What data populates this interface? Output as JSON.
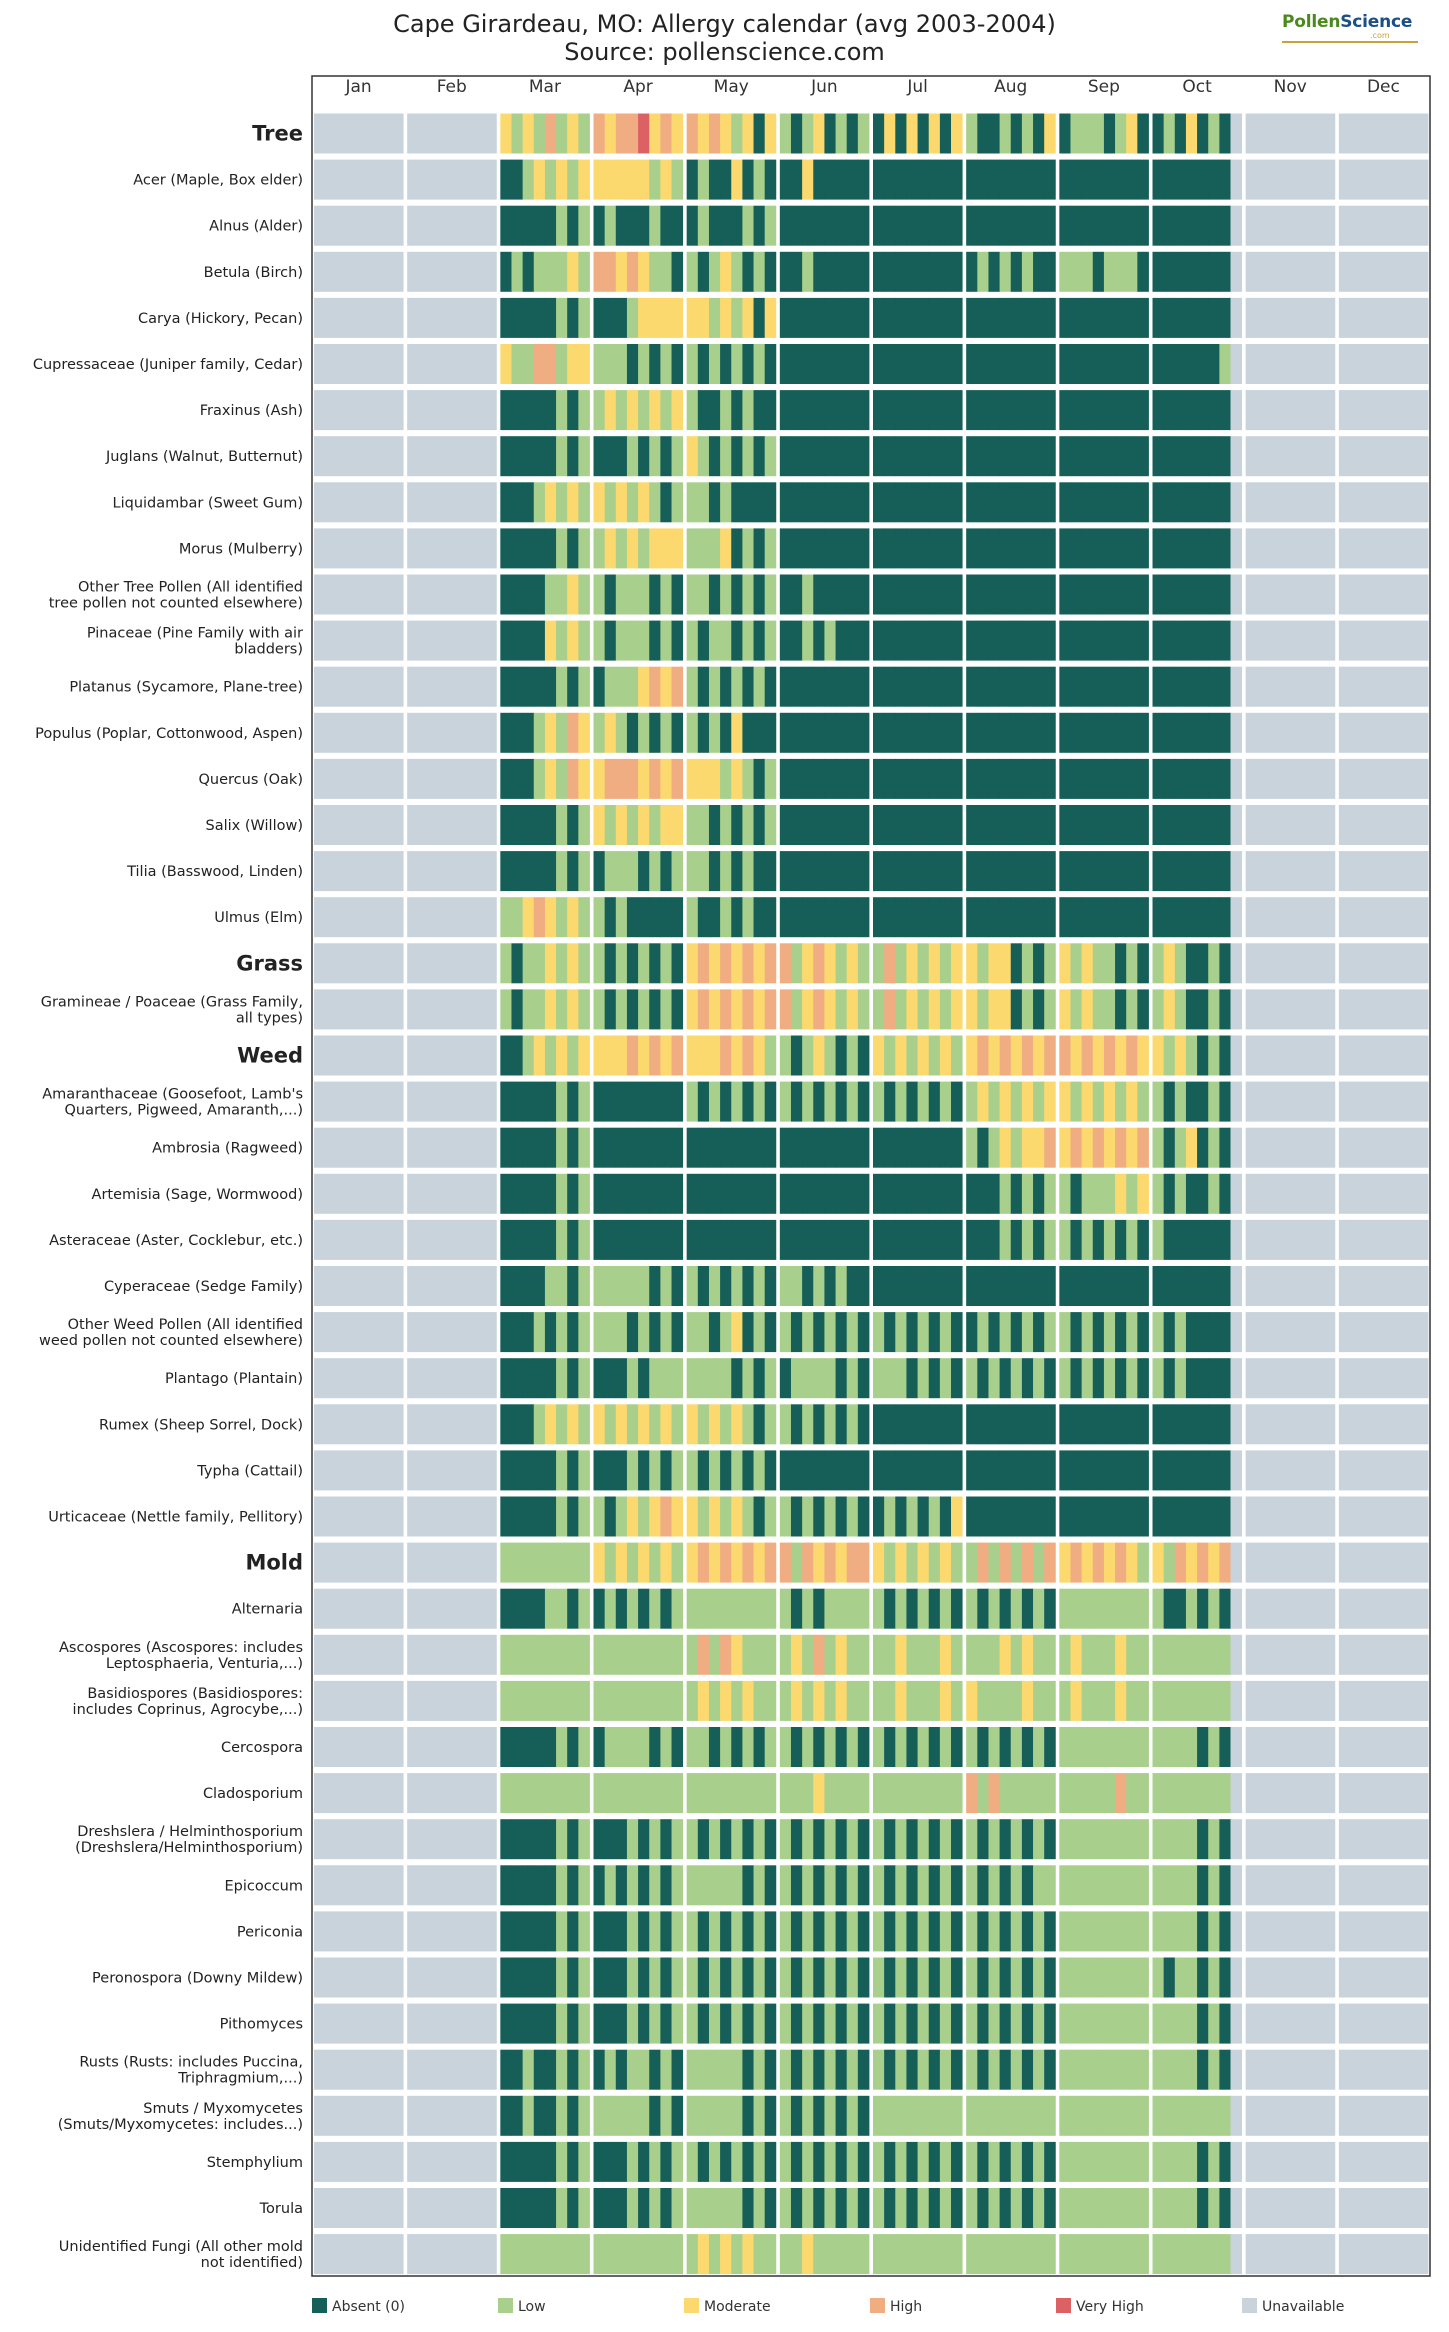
{
  "title": "Cape Girardeau, MO: Allergy calendar (avg 2003-2004)",
  "subtitle": "Source: pollenscience.com",
  "logo": {
    "brand_part1": "Pollen",
    "brand_part2": "Science",
    "domain": ".com"
  },
  "chart_data": {
    "type": "heatmap",
    "title": "Cape Girardeau, MO: Allergy calendar (avg 2003-2004)",
    "subtitle": "Source: pollenscience.com",
    "x_axis": "months",
    "months": [
      "Jan",
      "Feb",
      "Mar",
      "Apr",
      "May",
      "Jun",
      "Jul",
      "Aug",
      "Sep",
      "Oct",
      "Nov",
      "Dec"
    ],
    "level_names": [
      "Absent (0)",
      "Low",
      "Moderate",
      "High",
      "Very High",
      "Unavailable"
    ],
    "colors": {
      "absent": "#155f58",
      "low": "#a8cf8c",
      "moderate": "#fcd96f",
      "high": "#f0ad82",
      "very_high": "#dc6164",
      "unavailable": "#c8d3dc"
    },
    "legend": [
      {
        "label": "Absent (0)",
        "color": "#155f58"
      },
      {
        "label": "Low",
        "color": "#a8cf8c"
      },
      {
        "label": "Moderate",
        "color": "#fcd96f"
      },
      {
        "label": "High",
        "color": "#f0ad82"
      },
      {
        "label": "Very High",
        "color": "#dc6164"
      },
      {
        "label": "Unavailable",
        "color": "#c8d3dc"
      }
    ],
    "legend_position": "bottom",
    "level_code": "Each month lists its weekly cells as a string: 0=Absent, 1=Low, 2=Moderate, 3=High, 4=Very High, 5=Unavailable",
    "rows": [
      {
        "name": "Tree",
        "category": true,
        "months": [
          "5",
          "5",
          "21213121",
          "32334232",
          "32321202",
          "10120101",
          "02020202",
          "10010102",
          "01110120",
          "01020105",
          "5",
          "5"
        ]
      },
      {
        "name": "Acer (Maple, Box elder)",
        "category": false,
        "months": [
          "5",
          "5",
          "00121212",
          "22222121",
          "01002010",
          "00200000",
          "00000000",
          "00000000",
          "00000000",
          "00000005",
          "5",
          "5"
        ]
      },
      {
        "name": "Alnus (Alder)",
        "category": false,
        "months": [
          "5",
          "5",
          "00000101",
          "01000100",
          "01000101",
          "00000000",
          "00000000",
          "00000000",
          "00000000",
          "00000005",
          "5",
          "5"
        ]
      },
      {
        "name": "Betula (Birch)",
        "category": false,
        "months": [
          "5",
          "5",
          "01011121",
          "33232110",
          "10121010",
          "00100000",
          "00000000",
          "01010100",
          "11101110",
          "00000005",
          "5",
          "5"
        ]
      },
      {
        "name": "Carya (Hickory, Pecan)",
        "category": false,
        "months": [
          "5",
          "5",
          "00000101",
          "00012222",
          "22121202",
          "00000000",
          "00000000",
          "00000000",
          "00000000",
          "00000005",
          "5",
          "5"
        ]
      },
      {
        "name": "Cupressaceae (Juniper family, Cedar)",
        "category": false,
        "months": [
          "5",
          "5",
          "21133122",
          "11101010",
          "10101010",
          "00000000",
          "00000000",
          "00000000",
          "00000000",
          "00000015",
          "5",
          "5"
        ]
      },
      {
        "name": "Fraxinus (Ash)",
        "category": false,
        "months": [
          "5",
          "5",
          "00000101",
          "12121212",
          "10010100",
          "00000000",
          "00000000",
          "00000000",
          "00000000",
          "00000005",
          "5",
          "5"
        ]
      },
      {
        "name": "Juglans (Walnut, Butternut)",
        "category": false,
        "months": [
          "5",
          "5",
          "00000101",
          "00010101",
          "21010101",
          "00000000",
          "00000000",
          "00000000",
          "00000000",
          "00000005",
          "5",
          "5"
        ]
      },
      {
        "name": "Liquidambar (Sweet Gum)",
        "category": false,
        "months": [
          "5",
          "5",
          "00012121",
          "21212101",
          "11010000",
          "00000000",
          "00000000",
          "00000000",
          "00000000",
          "00000005",
          "5",
          "5"
        ]
      },
      {
        "name": "Morus (Mulberry)",
        "category": false,
        "months": [
          "5",
          "5",
          "00000101",
          "12121222",
          "11120101",
          "00000000",
          "00000000",
          "00000000",
          "00000000",
          "00000005",
          "5",
          "5"
        ]
      },
      {
        "name": "Other Tree Pollen (All identified\ntree pollen not counted elsewhere)",
        "category": false,
        "months": [
          "5",
          "5",
          "00001121",
          "10111010",
          "11010101",
          "00100000",
          "00000000",
          "00000000",
          "00000000",
          "00000005",
          "5",
          "5"
        ]
      },
      {
        "name": "Pinaceae (Pine Family with air\nbladders)",
        "category": false,
        "months": [
          "5",
          "5",
          "00002121",
          "10111010",
          "10110101",
          "00101000",
          "00000000",
          "00000000",
          "00000000",
          "00000005",
          "5",
          "5"
        ]
      },
      {
        "name": "Platanus (Sycamore, Plane-tree)",
        "category": false,
        "months": [
          "5",
          "5",
          "00000101",
          "01112323",
          "10101010",
          "00000000",
          "00000000",
          "00000000",
          "00000000",
          "00000005",
          "5",
          "5"
        ]
      },
      {
        "name": "Populus (Poplar, Cottonwood, Aspen)",
        "category": false,
        "months": [
          "5",
          "5",
          "00012132",
          "12101010",
          "10102000",
          "00000000",
          "00000000",
          "00000000",
          "00000000",
          "00000005",
          "5",
          "5"
        ]
      },
      {
        "name": "Quercus (Oak)",
        "category": false,
        "months": [
          "5",
          "5",
          "00012132",
          "23332323",
          "22212101",
          "00000000",
          "00000000",
          "00000000",
          "00000000",
          "00000005",
          "5",
          "5"
        ]
      },
      {
        "name": "Salix (Willow)",
        "category": false,
        "months": [
          "5",
          "5",
          "00000101",
          "21212122",
          "11010101",
          "00000000",
          "00000000",
          "00000000",
          "00000000",
          "00000005",
          "5",
          "5"
        ]
      },
      {
        "name": "Tilia (Basswood, Linden)",
        "category": false,
        "months": [
          "5",
          "5",
          "00000101",
          "01110101",
          "11010100",
          "00000000",
          "00000000",
          "00000000",
          "00000000",
          "00000005",
          "5",
          "5"
        ]
      },
      {
        "name": "Ulmus (Elm)",
        "category": false,
        "months": [
          "5",
          "5",
          "11232121",
          "10100000",
          "10010100",
          "00000000",
          "00000000",
          "00000000",
          "00000000",
          "00000005",
          "5",
          "5"
        ]
      },
      {
        "name": "Grass",
        "category": true,
        "months": [
          "5",
          "5",
          "10112121",
          "10101010",
          "23232323",
          "31232121",
          "13121212",
          "21220101",
          "21211010",
          "12100105",
          "5",
          "5"
        ]
      },
      {
        "name": "Gramineae / Poaceae (Grass Family,\nall types)",
        "category": false,
        "months": [
          "5",
          "5",
          "10112121",
          "10101010",
          "23232323",
          "31232121",
          "13121212",
          "21220101",
          "21211010",
          "12100105",
          "5",
          "5"
        ]
      },
      {
        "name": "Weed",
        "category": true,
        "months": [
          "5",
          "5",
          "00121212",
          "22232323",
          "22232321",
          "10121010",
          "21212121",
          "23232323",
          "32323232",
          "21210105",
          "5",
          "5"
        ]
      },
      {
        "name": "Amaranthaceae (Goosefoot, Lamb's\nQuarters, Pigweed, Amaranth,...)",
        "category": false,
        "months": [
          "5",
          "5",
          "00000101",
          "00000000",
          "10101010",
          "10101010",
          "10101010",
          "12121212",
          "21212121",
          "10100105",
          "5",
          "5"
        ]
      },
      {
        "name": "Ambrosia (Ragweed)",
        "category": false,
        "months": [
          "5",
          "5",
          "00000101",
          "00000000",
          "00000000",
          "00000000",
          "00000000",
          "10121223",
          "23232323",
          "10120105",
          "5",
          "5"
        ]
      },
      {
        "name": "Artemisia (Sage, Wormwood)",
        "category": false,
        "months": [
          "5",
          "5",
          "00000101",
          "00000000",
          "00000000",
          "00000000",
          "00000000",
          "00010101",
          "10111212",
          "10100105",
          "5",
          "5"
        ]
      },
      {
        "name": "Asteraceae (Aster, Cocklebur, etc.)",
        "category": false,
        "months": [
          "5",
          "5",
          "00000101",
          "00000000",
          "00000000",
          "00000000",
          "00000000",
          "00010101",
          "10101010",
          "10000005",
          "5",
          "5"
        ]
      },
      {
        "name": "Cyperaceae (Sedge Family)",
        "category": false,
        "months": [
          "5",
          "5",
          "00001101",
          "11111010",
          "10101010",
          "11010100",
          "00000000",
          "00000000",
          "00000000",
          "00000005",
          "5",
          "5"
        ]
      },
      {
        "name": "Other Weed Pollen (All identified\nweed pollen not counted elsewhere)",
        "category": false,
        "months": [
          "5",
          "5",
          "00010101",
          "11101010",
          "11012010",
          "10101010",
          "10101010",
          "01010101",
          "10101010",
          "10100005",
          "5",
          "5"
        ]
      },
      {
        "name": "Plantago (Plantain)",
        "category": false,
        "months": [
          "5",
          "5",
          "00000101",
          "00010111",
          "11110101",
          "01111010",
          "11101010",
          "10101010",
          "10101010",
          "10100005",
          "5",
          "5"
        ]
      },
      {
        "name": "Rumex (Sheep Sorrel, Dock)",
        "category": false,
        "months": [
          "5",
          "5",
          "00012121",
          "21212121",
          "21212101",
          "10101010",
          "00000000",
          "00000000",
          "00000000",
          "00000005",
          "5",
          "5"
        ]
      },
      {
        "name": "Typha (Cattail)",
        "category": false,
        "months": [
          "5",
          "5",
          "00000101",
          "00010101",
          "10101010",
          "00000000",
          "00000000",
          "00000000",
          "00000000",
          "00000005",
          "5",
          "5"
        ]
      },
      {
        "name": "Urticaceae (Nettle family, Pellitory)",
        "category": false,
        "months": [
          "5",
          "5",
          "00000101",
          "10121232",
          "21212101",
          "10101010",
          "01010102",
          "00000000",
          "00000000",
          "00000005",
          "5",
          "5"
        ]
      },
      {
        "name": "Mold",
        "category": true,
        "months": [
          "5",
          "5",
          "11111111",
          "21212121",
          "23232323",
          "31323233",
          "21212121",
          "13131313",
          "23232321",
          "21323235",
          "5",
          "5"
        ]
      },
      {
        "name": "Alternaria",
        "category": false,
        "months": [
          "5",
          "5",
          "00001101",
          "01010101",
          "11111111",
          "10101111",
          "10101010",
          "10101010",
          "11111111",
          "10010105",
          "5",
          "5"
        ]
      },
      {
        "name": "Ascospores (Ascospores: includes\nLeptosphaeria, Venturia,...)",
        "category": false,
        "months": [
          "5",
          "5",
          "11111111",
          "11111111",
          "13132111",
          "12131211",
          "11211121",
          "11121211",
          "12111211",
          "11111115",
          "5",
          "5"
        ]
      },
      {
        "name": "Basidiospores (Basidiospores:\nincludes Coprinus, Agrocybe,...)",
        "category": false,
        "months": [
          "5",
          "5",
          "11111111",
          "11111111",
          "12121211",
          "12121211",
          "11211121",
          "21111211",
          "12111211",
          "11111115",
          "5",
          "5"
        ]
      },
      {
        "name": "Cercospora",
        "category": false,
        "months": [
          "5",
          "5",
          "00000101",
          "01111010",
          "11010101",
          "10101010",
          "10101010",
          "10101010",
          "11111111",
          "11110105",
          "5",
          "5"
        ]
      },
      {
        "name": "Cladosporium",
        "category": false,
        "months": [
          "5",
          "5",
          "11111111",
          "11111111",
          "11111111",
          "11121111",
          "11111111",
          "31311111",
          "11111311",
          "11111115",
          "5",
          "5"
        ]
      },
      {
        "name": "Dreshslera / Helminthosporium\n(Dreshslera/Helminthosporium)",
        "category": false,
        "months": [
          "5",
          "5",
          "00000101",
          "00010101",
          "10101010",
          "10101010",
          "10101010",
          "10101010",
          "11111111",
          "11110105",
          "5",
          "5"
        ]
      },
      {
        "name": "Epicoccum",
        "category": false,
        "months": [
          "5",
          "5",
          "00000101",
          "01010101",
          "11111010",
          "10101010",
          "10101010",
          "10101011",
          "11111111",
          "11110105",
          "5",
          "5"
        ]
      },
      {
        "name": "Periconia",
        "category": false,
        "months": [
          "5",
          "5",
          "00000101",
          "00010101",
          "10101010",
          "10101010",
          "10101010",
          "10101010",
          "11111111",
          "11110105",
          "5",
          "5"
        ]
      },
      {
        "name": "Peronospora (Downy Mildew)",
        "category": false,
        "months": [
          "5",
          "5",
          "00000101",
          "00010101",
          "10101010",
          "10101010",
          "10101010",
          "10101010",
          "11111111",
          "10110105",
          "5",
          "5"
        ]
      },
      {
        "name": "Pithomyces",
        "category": false,
        "months": [
          "5",
          "5",
          "00000101",
          "00010101",
          "10101010",
          "10101010",
          "10101010",
          "10101010",
          "11111111",
          "11110105",
          "5",
          "5"
        ]
      },
      {
        "name": "Rusts (Rusts: includes Puccina,\nTriphragmium,...)",
        "category": false,
        "months": [
          "5",
          "5",
          "00100101",
          "01011010",
          "11111010",
          "10101010",
          "10101010",
          "10101010",
          "11111111",
          "11110105",
          "5",
          "5"
        ]
      },
      {
        "name": "Smuts / Myxomycetes\n(Smuts/Myxomycetes: includes...)",
        "category": false,
        "months": [
          "5",
          "5",
          "00100101",
          "11111010",
          "11111010",
          "10101010",
          "11111111",
          "11111111",
          "11111111",
          "11111115",
          "5",
          "5"
        ]
      },
      {
        "name": "Stemphylium",
        "category": false,
        "months": [
          "5",
          "5",
          "00000101",
          "00010101",
          "10101010",
          "10101010",
          "10101010",
          "10101010",
          "11111111",
          "11110105",
          "5",
          "5"
        ]
      },
      {
        "name": "Torula",
        "category": false,
        "months": [
          "5",
          "5",
          "00000101",
          "00010101",
          "11111010",
          "10101010",
          "10101010",
          "10101010",
          "11111111",
          "11110105",
          "5",
          "5"
        ]
      },
      {
        "name": "Unidentified Fungi (All other mold\nnot identified)",
        "category": false,
        "months": [
          "5",
          "5",
          "11111111",
          "11111111",
          "12121211",
          "11211111",
          "11111111",
          "11111111",
          "11111111",
          "11111115",
          "5",
          "5"
        ]
      }
    ]
  }
}
